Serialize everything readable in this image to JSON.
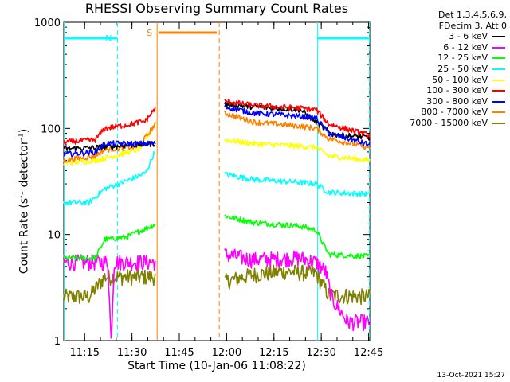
{
  "chart_data": {
    "type": "line",
    "title": "RHESSI Observing Summary Count Rates",
    "xlabel": "Start Time (10-Jan-06 11:08:22)",
    "ylabel_text": "Count Rate (s",
    "ylabel_sup1": "-1",
    "ylabel_mid": " detector",
    "ylabel_sup2": "-1",
    "ylabel_end": ")",
    "yscale": "log",
    "ylim": [
      1,
      1000
    ],
    "xlim_minutes": [
      0,
      97
    ],
    "x_ticks": [
      "11:15",
      "11:30",
      "11:45",
      "12:00",
      "12:15",
      "12:30",
      "12:45"
    ],
    "x_tick_minutes": [
      6.63,
      21.63,
      36.63,
      51.63,
      66.63,
      81.63,
      96.63
    ],
    "y_ticks": [
      "1",
      "10",
      "100",
      "1000"
    ],
    "legend_header": [
      "Det 1,3,4,5,6,9,",
      "FDecim 3, Att 0"
    ],
    "series": [
      {
        "name": "3 - 6 keV",
        "color": "#000000",
        "seg1": [
          [
            0,
            64
          ],
          [
            10,
            66
          ],
          [
            17,
            68
          ],
          [
            20,
            69
          ],
          [
            29,
            72
          ]
        ],
        "seg2": [
          [
            51,
            170
          ],
          [
            60,
            160
          ],
          [
            75,
            150
          ],
          [
            85,
            88
          ],
          [
            97,
            82
          ]
        ]
      },
      {
        "name": "6 - 12 keV",
        "color": "#ff00ff",
        "seg1": [
          [
            0,
            5.5
          ],
          [
            14,
            5.5
          ],
          [
            15,
            1.0
          ],
          [
            16,
            5.5
          ],
          [
            29,
            5.5
          ]
        ],
        "seg2": [
          [
            51,
            6.5
          ],
          [
            60,
            5.8
          ],
          [
            75,
            6.0
          ],
          [
            80,
            5.5
          ],
          [
            83,
            4.5
          ],
          [
            85,
            2.5
          ],
          [
            90,
            1.5
          ],
          [
            97,
            1.5
          ]
        ]
      },
      {
        "name": "12 - 25 keV",
        "color": "#00ff00",
        "seg1": [
          [
            0,
            6
          ],
          [
            10,
            6
          ],
          [
            13,
            9
          ],
          [
            20,
            9.5
          ],
          [
            29,
            12.5
          ]
        ],
        "seg2": [
          [
            51,
            15
          ],
          [
            60,
            13
          ],
          [
            75,
            12
          ],
          [
            80,
            11
          ],
          [
            84,
            6.5
          ],
          [
            97,
            6.2
          ]
        ]
      },
      {
        "name": "25 - 50 keV",
        "color": "#00ffff",
        "seg1": [
          [
            0,
            20
          ],
          [
            8,
            20
          ],
          [
            13,
            27
          ],
          [
            20,
            32
          ],
          [
            26,
            38
          ],
          [
            29,
            62
          ]
        ],
        "seg2": [
          [
            51,
            37
          ],
          [
            60,
            33
          ],
          [
            75,
            31
          ],
          [
            80,
            30
          ],
          [
            84,
            25
          ],
          [
            97,
            24
          ]
        ]
      },
      {
        "name": "50 - 100 keV",
        "color": "#ffff00",
        "seg1": [
          [
            0,
            47
          ],
          [
            10,
            50
          ],
          [
            17,
            56
          ],
          [
            24,
            64
          ],
          [
            29,
            110
          ]
        ],
        "seg2": [
          [
            51,
            78
          ],
          [
            60,
            72
          ],
          [
            75,
            68
          ],
          [
            80,
            66
          ],
          [
            84,
            55
          ],
          [
            97,
            50
          ]
        ]
      },
      {
        "name": "100 - 300 keV",
        "color": "#ff0000",
        "seg1": [
          [
            0,
            74
          ],
          [
            10,
            78
          ],
          [
            13,
            100
          ],
          [
            20,
            108
          ],
          [
            26,
            118
          ],
          [
            29,
            155
          ]
        ],
        "seg2": [
          [
            51,
            180
          ],
          [
            60,
            165
          ],
          [
            75,
            155
          ],
          [
            80,
            150
          ],
          [
            84,
            110
          ],
          [
            97,
            86
          ]
        ]
      },
      {
        "name": "300 - 800 keV",
        "color": "#0000ff",
        "seg1": [
          [
            0,
            57
          ],
          [
            10,
            60
          ],
          [
            13,
            72
          ],
          [
            20,
            72
          ],
          [
            29,
            72
          ]
        ],
        "seg2": [
          [
            51,
            160
          ],
          [
            60,
            140
          ],
          [
            75,
            130
          ],
          [
            80,
            125
          ],
          [
            84,
            90
          ],
          [
            97,
            70
          ]
        ]
      },
      {
        "name": "800 - 7000 keV",
        "color": "#ff8000",
        "seg1": [
          [
            0,
            50
          ],
          [
            10,
            55
          ],
          [
            13,
            63
          ],
          [
            20,
            66
          ],
          [
            24,
            68
          ],
          [
            29,
            110
          ]
        ],
        "seg2": [
          [
            51,
            140
          ],
          [
            60,
            115
          ],
          [
            75,
            105
          ],
          [
            80,
            100
          ],
          [
            84,
            80
          ],
          [
            97,
            66
          ]
        ]
      },
      {
        "name": "7000 - 15000 keV",
        "color": "#808000",
        "seg1": [
          [
            0,
            2.6
          ],
          [
            8,
            2.6
          ],
          [
            13,
            4.0
          ],
          [
            20,
            4.0
          ],
          [
            29,
            4.0
          ]
        ],
        "seg2": [
          [
            51,
            3.6
          ],
          [
            60,
            4.2
          ],
          [
            70,
            4.5
          ],
          [
            80,
            4.3
          ],
          [
            84,
            2.7
          ],
          [
            97,
            2.6
          ]
        ]
      }
    ],
    "annotations": [
      {
        "text": "N",
        "color": "#00ffff"
      },
      {
        "text": "S",
        "color": "#ff8000"
      }
    ],
    "night_markers": {
      "color": "#00ffff",
      "solid_at": [
        0,
        80.3
      ],
      "dashed_at": [
        17.2,
        97
      ]
    },
    "saa_markers": {
      "color": "#ff8000",
      "solid_at": 29.6,
      "dashed_at": 49.3
    },
    "night_bars": [
      [
        0.5,
        17
      ],
      [
        80.5,
        97
      ]
    ],
    "saa_bar": [
      30,
      48.5
    ]
  },
  "stamp": "13-Oct-2021 15:27"
}
